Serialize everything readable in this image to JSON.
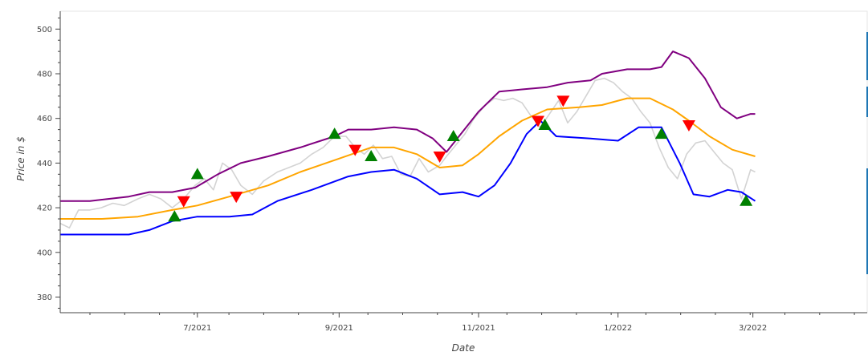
{
  "chart_data": {
    "type": "line",
    "title": "",
    "xlabel": "Date",
    "ylabel": "Price in $",
    "x_ticks": [
      "7/2021",
      "9/2021",
      "11/2021",
      "1/2022",
      "3/2022"
    ],
    "x_tick_dates": [
      "2021-07-01",
      "2021-09-01",
      "2021-11-01",
      "2022-01-01",
      "2022-03-01"
    ],
    "xlim": [
      "2021-05-02",
      "2022-04-20"
    ],
    "ylim": [
      373,
      508
    ],
    "y_ticks": [
      380,
      400,
      420,
      440,
      460,
      480,
      500
    ],
    "grid": false,
    "legend": "none",
    "colors": {
      "price": "#d3d3d3",
      "upper": "#800080",
      "middle": "#ffa500",
      "lower": "#0000ff",
      "buy": "#008000",
      "sell": "#ff0000"
    },
    "series": [
      {
        "role": "price",
        "points": [
          [
            "2021-05-02",
            413
          ],
          [
            "2021-05-06",
            411
          ],
          [
            "2021-05-10",
            419
          ],
          [
            "2021-05-15",
            419
          ],
          [
            "2021-05-20",
            420
          ],
          [
            "2021-05-25",
            422
          ],
          [
            "2021-05-30",
            421
          ],
          [
            "2021-06-05",
            424
          ],
          [
            "2021-06-10",
            426
          ],
          [
            "2021-06-15",
            424
          ],
          [
            "2021-06-20",
            420
          ],
          [
            "2021-06-25",
            424
          ],
          [
            "2021-06-30",
            430
          ],
          [
            "2021-07-04",
            433
          ],
          [
            "2021-07-08",
            428
          ],
          [
            "2021-07-12",
            440
          ],
          [
            "2021-07-16",
            437
          ],
          [
            "2021-07-20",
            430
          ],
          [
            "2021-07-25",
            426
          ],
          [
            "2021-07-30",
            432
          ],
          [
            "2021-08-05",
            436
          ],
          [
            "2021-08-10",
            438
          ],
          [
            "2021-08-15",
            440
          ],
          [
            "2021-08-20",
            444
          ],
          [
            "2021-08-25",
            447
          ],
          [
            "2021-08-30",
            452
          ],
          [
            "2021-09-04",
            452
          ],
          [
            "2021-09-08",
            447
          ],
          [
            "2021-09-12",
            444
          ],
          [
            "2021-09-16",
            448
          ],
          [
            "2021-09-20",
            442
          ],
          [
            "2021-09-24",
            443
          ],
          [
            "2021-09-28",
            435
          ],
          [
            "2021-10-02",
            434
          ],
          [
            "2021-10-06",
            442
          ],
          [
            "2021-10-10",
            436
          ],
          [
            "2021-10-15",
            439
          ],
          [
            "2021-10-18",
            443
          ],
          [
            "2021-10-22",
            448
          ],
          [
            "2021-10-26",
            453
          ],
          [
            "2021-10-30",
            460
          ],
          [
            "2021-11-04",
            466
          ],
          [
            "2021-11-08",
            469
          ],
          [
            "2021-11-12",
            468
          ],
          [
            "2021-11-16",
            469
          ],
          [
            "2021-11-20",
            467
          ],
          [
            "2021-11-24",
            461
          ],
          [
            "2021-11-28",
            456
          ],
          [
            "2021-12-02",
            462
          ],
          [
            "2021-12-06",
            468
          ],
          [
            "2021-12-10",
            458
          ],
          [
            "2021-12-14",
            463
          ],
          [
            "2021-12-18",
            470
          ],
          [
            "2021-12-22",
            477
          ],
          [
            "2021-12-26",
            478
          ],
          [
            "2021-12-30",
            476
          ],
          [
            "2022-01-03",
            472
          ],
          [
            "2022-01-07",
            469
          ],
          [
            "2022-01-11",
            463
          ],
          [
            "2022-01-15",
            458
          ],
          [
            "2022-01-19",
            447
          ],
          [
            "2022-01-23",
            438
          ],
          [
            "2022-01-27",
            433
          ],
          [
            "2022-01-31",
            444
          ],
          [
            "2022-02-04",
            449
          ],
          [
            "2022-02-08",
            450
          ],
          [
            "2022-02-12",
            445
          ],
          [
            "2022-02-16",
            440
          ],
          [
            "2022-02-20",
            437
          ],
          [
            "2022-02-24",
            424
          ],
          [
            "2022-02-28",
            437
          ],
          [
            "2022-03-02",
            436
          ]
        ]
      },
      {
        "role": "upper",
        "points": [
          [
            "2021-05-02",
            423
          ],
          [
            "2021-05-15",
            423
          ],
          [
            "2021-06-01",
            425
          ],
          [
            "2021-06-10",
            427
          ],
          [
            "2021-06-20",
            427
          ],
          [
            "2021-06-30",
            429
          ],
          [
            "2021-07-10",
            435
          ],
          [
            "2021-07-20",
            440
          ],
          [
            "2021-08-01",
            443
          ],
          [
            "2021-08-15",
            447
          ],
          [
            "2021-08-30",
            452
          ],
          [
            "2021-09-05",
            455
          ],
          [
            "2021-09-15",
            455
          ],
          [
            "2021-09-25",
            456
          ],
          [
            "2021-10-05",
            455
          ],
          [
            "2021-10-12",
            451
          ],
          [
            "2021-10-18",
            445
          ],
          [
            "2021-10-25",
            454
          ],
          [
            "2021-11-01",
            463
          ],
          [
            "2021-11-10",
            472
          ],
          [
            "2021-11-20",
            473
          ],
          [
            "2021-12-01",
            474
          ],
          [
            "2021-12-10",
            476
          ],
          [
            "2021-12-20",
            477
          ],
          [
            "2021-12-25",
            480
          ],
          [
            "2022-01-05",
            482
          ],
          [
            "2022-01-15",
            482
          ],
          [
            "2022-01-20",
            483
          ],
          [
            "2022-01-25",
            490
          ],
          [
            "2022-02-01",
            487
          ],
          [
            "2022-02-08",
            478
          ],
          [
            "2022-02-15",
            465
          ],
          [
            "2022-02-22",
            460
          ],
          [
            "2022-02-28",
            462
          ],
          [
            "2022-03-02",
            462
          ]
        ]
      },
      {
        "role": "middle",
        "points": [
          [
            "2021-05-02",
            415
          ],
          [
            "2021-05-20",
            415
          ],
          [
            "2021-06-05",
            416
          ],
          [
            "2021-06-20",
            419
          ],
          [
            "2021-07-01",
            421
          ],
          [
            "2021-07-15",
            425
          ],
          [
            "2021-08-01",
            430
          ],
          [
            "2021-08-15",
            436
          ],
          [
            "2021-09-01",
            442
          ],
          [
            "2021-09-15",
            447
          ],
          [
            "2021-09-25",
            447
          ],
          [
            "2021-10-05",
            444
          ],
          [
            "2021-10-15",
            438
          ],
          [
            "2021-10-25",
            439
          ],
          [
            "2021-11-01",
            444
          ],
          [
            "2021-11-10",
            452
          ],
          [
            "2021-11-20",
            459
          ],
          [
            "2021-12-01",
            464
          ],
          [
            "2021-12-15",
            465
          ],
          [
            "2021-12-25",
            466
          ],
          [
            "2022-01-05",
            469
          ],
          [
            "2022-01-15",
            469
          ],
          [
            "2022-01-25",
            464
          ],
          [
            "2022-02-01",
            459
          ],
          [
            "2022-02-10",
            452
          ],
          [
            "2022-02-20",
            446
          ],
          [
            "2022-03-02",
            443
          ]
        ]
      },
      {
        "role": "lower",
        "points": [
          [
            "2021-05-02",
            408
          ],
          [
            "2021-06-01",
            408
          ],
          [
            "2021-06-10",
            410
          ],
          [
            "2021-06-20",
            414
          ],
          [
            "2021-07-01",
            416
          ],
          [
            "2021-07-15",
            416
          ],
          [
            "2021-07-25",
            417
          ],
          [
            "2021-08-05",
            423
          ],
          [
            "2021-08-20",
            428
          ],
          [
            "2021-09-05",
            434
          ],
          [
            "2021-09-15",
            436
          ],
          [
            "2021-09-25",
            437
          ],
          [
            "2021-10-05",
            433
          ],
          [
            "2021-10-15",
            426
          ],
          [
            "2021-10-25",
            427
          ],
          [
            "2021-11-01",
            425
          ],
          [
            "2021-11-08",
            430
          ],
          [
            "2021-11-15",
            440
          ],
          [
            "2021-11-22",
            453
          ],
          [
            "2021-11-28",
            459
          ],
          [
            "2021-12-05",
            452
          ],
          [
            "2021-12-20",
            451
          ],
          [
            "2022-01-01",
            450
          ],
          [
            "2022-01-10",
            456
          ],
          [
            "2022-01-20",
            456
          ],
          [
            "2022-01-28",
            440
          ],
          [
            "2022-02-03",
            426
          ],
          [
            "2022-02-10",
            425
          ],
          [
            "2022-02-18",
            428
          ],
          [
            "2022-02-24",
            427
          ],
          [
            "2022-03-02",
            423
          ]
        ]
      }
    ],
    "buy_signals": [
      [
        "2021-06-21",
        416
      ],
      [
        "2021-07-01",
        435
      ],
      [
        "2021-08-30",
        453
      ],
      [
        "2021-09-15",
        443
      ],
      [
        "2021-10-21",
        452
      ],
      [
        "2021-11-30",
        457
      ],
      [
        "2022-01-20",
        453
      ],
      [
        "2022-02-26",
        423
      ]
    ],
    "sell_signals": [
      [
        "2021-06-25",
        423
      ],
      [
        "2021-07-18",
        425
      ],
      [
        "2021-09-08",
        446
      ],
      [
        "2021-10-15",
        443
      ],
      [
        "2021-11-27",
        459
      ],
      [
        "2021-12-08",
        468
      ],
      [
        "2022-02-01",
        457
      ]
    ]
  }
}
